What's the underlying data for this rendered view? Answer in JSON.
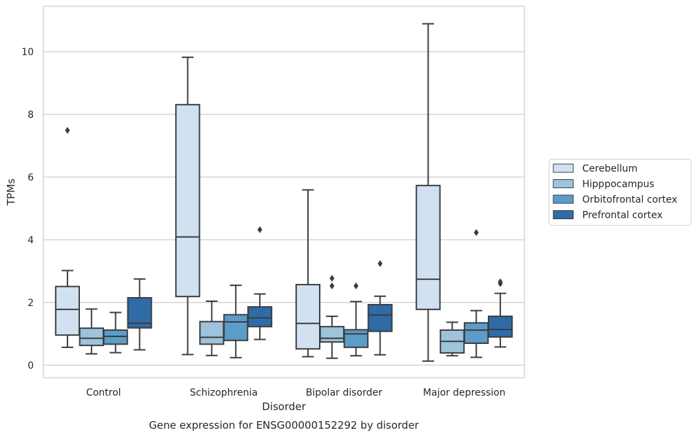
{
  "chart_data": {
    "type": "box",
    "title": "Gene expression for ENSG00000152292 by disorder",
    "xlabel": "Disorder",
    "ylabel": "TPMs",
    "ylim": [
      -0.4,
      11.45
    ],
    "yticks": [
      0,
      2,
      4,
      6,
      8,
      10
    ],
    "grid": true,
    "legend_position": "right",
    "categories": [
      "Control",
      "Schizophrenia",
      "Bipolar disorder",
      "Major depression"
    ],
    "series": [
      {
        "name": "Cerebellum",
        "color": "#d2e1f1",
        "boxes": [
          {
            "whislo": 0.57,
            "q1": 0.96,
            "med": 1.78,
            "q3": 2.51,
            "whishi": 3.02,
            "fliers": [
              7.49
            ]
          },
          {
            "whislo": 0.34,
            "q1": 2.19,
            "med": 4.09,
            "q3": 8.31,
            "whishi": 9.82,
            "fliers": []
          },
          {
            "whislo": 0.27,
            "q1": 0.52,
            "med": 1.33,
            "q3": 2.57,
            "whishi": 5.59,
            "fliers": []
          },
          {
            "whislo": 0.13,
            "q1": 1.78,
            "med": 2.74,
            "q3": 5.73,
            "whishi": 10.89,
            "fliers": []
          }
        ]
      },
      {
        "name": "Hipppocampus",
        "color": "#9dc3dd",
        "boxes": [
          {
            "whislo": 0.36,
            "q1": 0.63,
            "med": 0.86,
            "q3": 1.18,
            "whishi": 1.79,
            "fliers": []
          },
          {
            "whislo": 0.31,
            "q1": 0.67,
            "med": 0.89,
            "q3": 1.39,
            "whishi": 2.04,
            "fliers": []
          },
          {
            "whislo": 0.22,
            "q1": 0.74,
            "med": 0.86,
            "q3": 1.23,
            "whishi": 1.56,
            "fliers": [
              2.53,
              2.77
            ]
          },
          {
            "whislo": 0.3,
            "q1": 0.39,
            "med": 0.76,
            "q3": 1.12,
            "whishi": 1.37,
            "fliers": []
          }
        ]
      },
      {
        "name": "Orbitofrontal cortex",
        "color": "#5b9cc8",
        "boxes": [
          {
            "whislo": 0.4,
            "q1": 0.67,
            "med": 0.92,
            "q3": 1.12,
            "whishi": 1.68,
            "fliers": []
          },
          {
            "whislo": 0.24,
            "q1": 0.79,
            "med": 1.38,
            "q3": 1.61,
            "whishi": 2.55,
            "fliers": []
          },
          {
            "whislo": 0.3,
            "q1": 0.57,
            "med": 1.0,
            "q3": 1.13,
            "whishi": 2.03,
            "fliers": [
              2.53
            ]
          },
          {
            "whislo": 0.25,
            "q1": 0.7,
            "med": 1.12,
            "q3": 1.35,
            "whishi": 1.74,
            "fliers": [
              4.23
            ]
          }
        ]
      },
      {
        "name": "Prefrontal cortex",
        "color": "#2e6ba7",
        "boxes": [
          {
            "whislo": 0.49,
            "q1": 1.19,
            "med": 1.34,
            "q3": 2.15,
            "whishi": 2.75,
            "fliers": []
          },
          {
            "whislo": 0.82,
            "q1": 1.23,
            "med": 1.51,
            "q3": 1.86,
            "whishi": 2.27,
            "fliers": [
              4.32
            ]
          },
          {
            "whislo": 0.33,
            "q1": 1.08,
            "med": 1.6,
            "q3": 1.93,
            "whishi": 2.2,
            "fliers": [
              3.24
            ]
          },
          {
            "whislo": 0.58,
            "q1": 0.9,
            "med": 1.14,
            "q3": 1.56,
            "whishi": 2.29,
            "fliers": [
              2.6,
              2.66
            ]
          }
        ]
      }
    ]
  }
}
